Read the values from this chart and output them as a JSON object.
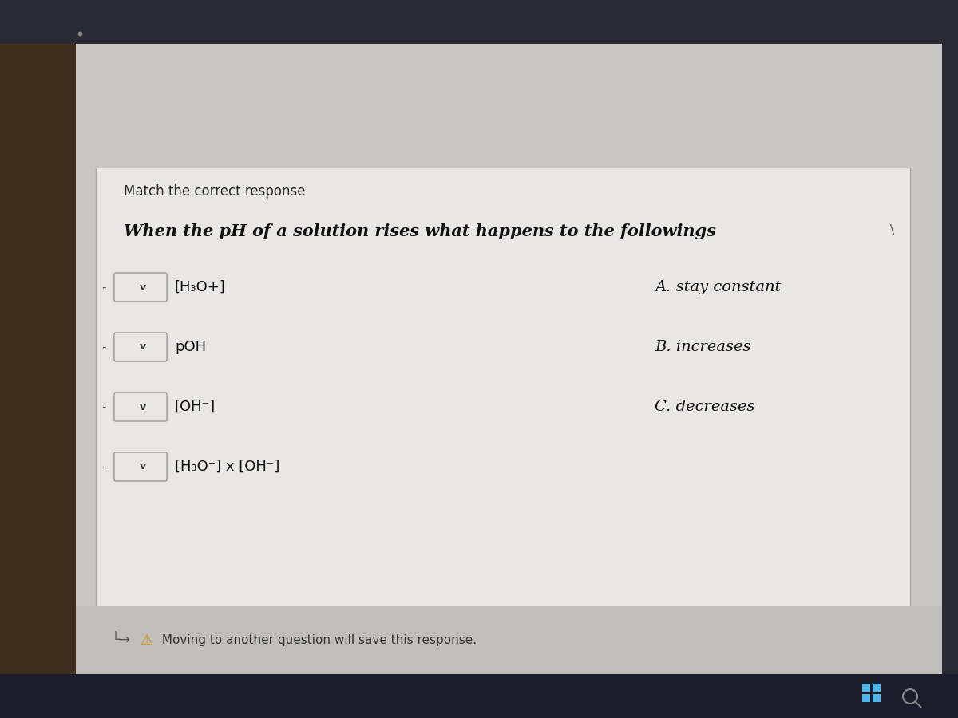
{
  "bg_outer_left": "#3a2e24",
  "bg_outer_dark": "#2a2a35",
  "bg_screen": "#c8c5c2",
  "bg_white_box": "#e8e6e3",
  "bg_taskbar": "#1a1a28",
  "title": "Match the correct response",
  "question": "When the pH of a solution rises what happens to the followings",
  "left_items": [
    "[H₃O+]",
    "pOH",
    "[OH⁻]",
    "[H₃O⁺] x [OH⁻]"
  ],
  "right_items": [
    "A. stay constant",
    "B. increases",
    "C. decreases"
  ],
  "footer_arrow": "└→",
  "footer_text": " Moving to another question will save this response.",
  "title_fontsize": 12,
  "question_fontsize": 15,
  "item_fontsize": 13,
  "answer_fontsize": 14
}
